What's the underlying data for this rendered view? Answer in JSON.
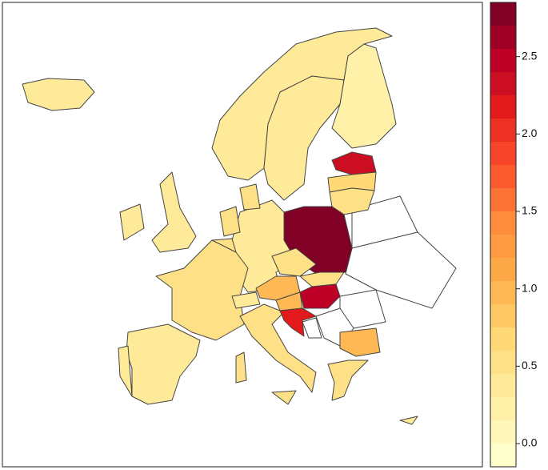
{
  "chart_data": {
    "type": "choropleth",
    "values": [
      0.4,
      0.3,
      0.3,
      0.25,
      2.3,
      0.6,
      0.55,
      2.8,
      0.4,
      0.55,
      0.45,
      0.45,
      0.4,
      0.4,
      0.5,
      0.5,
      0.5,
      0.4,
      1.0,
      0.45,
      0.5,
      2.4,
      1.0,
      2.2,
      0.95,
      0.45,
      0.35,
      0.35,
      0.45,
      0.35
    ],
    "colors": [
      "#FFFFCC",
      "#FFF8BA",
      "#FFF1A8",
      "#FEEA98",
      "#FEE187",
      "#FED976",
      "#FEC965",
      "#FEB954",
      "#FDA948",
      "#FD9A42",
      "#FD8C3C",
      "#FC7335",
      "#FC5B2E",
      "#F64528",
      "#EC3023",
      "#E31A1C",
      "#CC0E22",
      "#BD0026",
      "#A10026",
      "#800026"
    ],
    "zlim": [
      -0.15,
      2.85
    ],
    "zticks": [
      {
        "value": 0,
        "label": "0.0"
      },
      {
        "value": 0.5,
        "label": "0.5"
      },
      {
        "value": 1,
        "label": "1.0"
      },
      {
        "value": 1.5,
        "label": "1.5"
      },
      {
        "value": 2,
        "label": "2.0"
      },
      {
        "value": 2.5,
        "label": "2.5"
      }
    ]
  }
}
